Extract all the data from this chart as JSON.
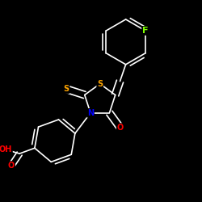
{
  "bg_color": "#000000",
  "bond_color": "#ffffff",
  "atom_colors": {
    "F": "#7fff00",
    "S": "#ffa500",
    "N": "#0000ff",
    "O": "#ff0000",
    "C": "#ffffff"
  },
  "font_size": 7,
  "lw": 1.2,
  "dbo": 0.025,
  "figsize": [
    2.5,
    2.5
  ],
  "dpi": 100
}
